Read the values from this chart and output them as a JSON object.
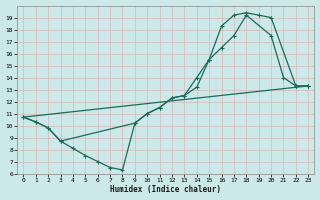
{
  "xlabel": "Humidex (Indice chaleur)",
  "bg_color": "#cde8e8",
  "grid_color": "#c0d8d8",
  "line_color": "#1a6b5a",
  "xlim": [
    -0.5,
    23.5
  ],
  "ylim": [
    6,
    20
  ],
  "xticks": [
    0,
    1,
    2,
    3,
    4,
    5,
    6,
    7,
    8,
    9,
    10,
    11,
    12,
    13,
    14,
    15,
    16,
    17,
    18,
    19,
    20,
    21,
    22,
    23
  ],
  "yticks": [
    6,
    7,
    8,
    9,
    10,
    11,
    12,
    13,
    14,
    15,
    16,
    17,
    18,
    19
  ],
  "curve1_x": [
    0,
    1,
    2,
    3,
    4,
    5,
    6,
    7,
    8,
    9,
    10,
    11,
    12,
    13,
    14,
    15,
    16,
    17,
    18,
    20,
    21,
    22,
    23
  ],
  "curve1_y": [
    10.7,
    10.3,
    9.8,
    8.7,
    8.1,
    7.5,
    7.0,
    6.5,
    6.3,
    10.2,
    11.0,
    11.5,
    12.3,
    12.5,
    14.0,
    15.5,
    16.5,
    17.5,
    19.2,
    17.5,
    14.0,
    13.3,
    13.3
  ],
  "curve2_x": [
    0,
    1,
    2,
    3,
    9,
    10,
    11,
    12,
    13,
    14,
    15,
    16,
    17,
    18,
    19,
    20,
    22,
    23
  ],
  "curve2_y": [
    10.7,
    10.3,
    9.8,
    8.7,
    10.2,
    11.0,
    11.5,
    12.3,
    12.5,
    13.2,
    15.5,
    18.3,
    19.2,
    19.4,
    19.2,
    19.0,
    13.3,
    13.3
  ],
  "curve3_x": [
    0,
    23
  ],
  "curve3_y": [
    10.7,
    13.3
  ]
}
